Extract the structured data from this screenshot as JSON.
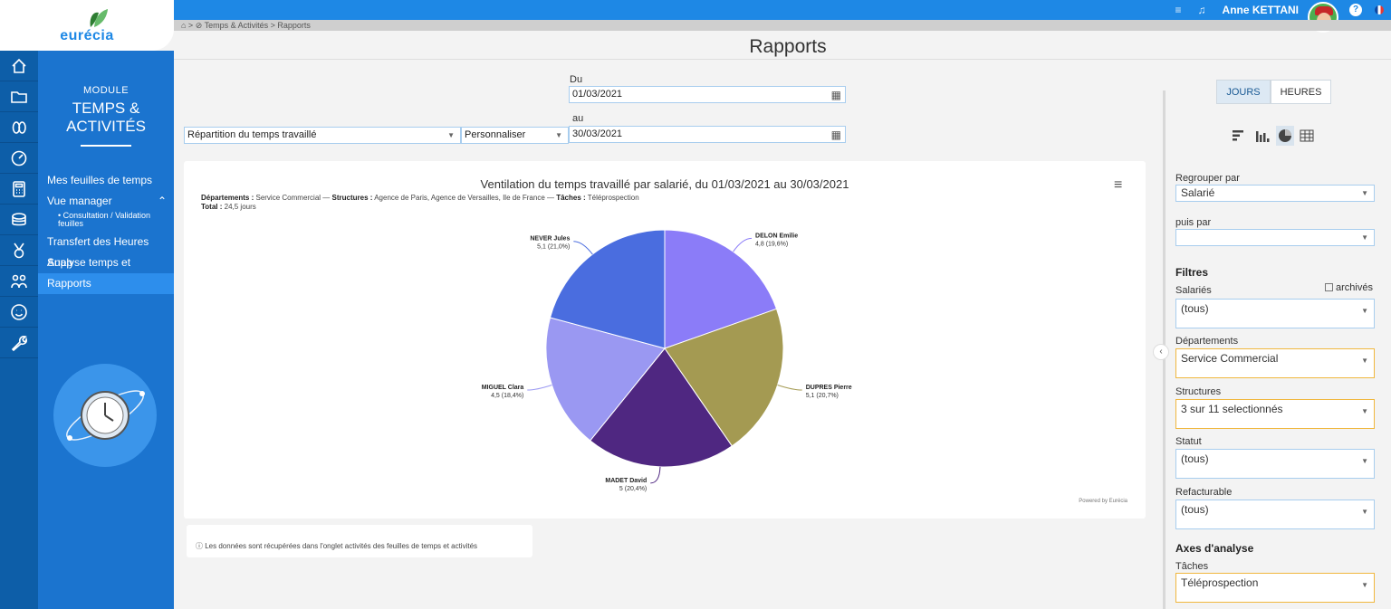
{
  "app": {
    "brand": "eurécia"
  },
  "topbar": {
    "user_name": "Anne KETTANI",
    "help": "?"
  },
  "breadcrumb": "⌂ > ⊘ Temps & Activités > Rapports",
  "module": {
    "kicker": "MODULE",
    "title_line1": "TEMPS &",
    "title_line2": "ACTIVITÉS",
    "menu": {
      "item1": "Mes feuilles de temps",
      "item2": "Vue manager",
      "sub": "• Consultation / Validation feuilles",
      "item3": "Transfert des Heures Supp",
      "item4": "Analyse temps et activités",
      "item5": "Rapports"
    },
    "rail_icons": [
      "home-icon",
      "folder-icon",
      "flip-flops-icon",
      "stopwatch-icon",
      "calculator-icon",
      "coins-icon",
      "medal-icon",
      "people-icon",
      "smiley-icon",
      "wrench-icon"
    ]
  },
  "page": {
    "title": "Rapports"
  },
  "filters": {
    "du_label": "Du",
    "du_value": "01/03/2021",
    "au_label": "au",
    "au_value": "30/03/2021",
    "report_type": "Répartition du temps travaillé",
    "period_mode": "Personnaliser"
  },
  "chart_card": {
    "title": "Ventilation du temps travaillé par salarié, du 01/03/2021 au 30/03/2021",
    "sub_dept_label": "Départements :",
    "sub_dept_value": "Service Commercial",
    "sub_struct_label": "Structures :",
    "sub_struct_value": "Agence de Paris, Agence de Versailles, Ile de France",
    "sub_task_label": "Tâches :",
    "sub_task_value": "Téléprospection",
    "sub_total_label": "Total :",
    "sub_total_value": "24,5 jours",
    "powered": "Powered by Eurécia",
    "menu_icon": "≡"
  },
  "chart_data": {
    "type": "pie",
    "categories": [
      "DELON Emilie",
      "DUPRES Pierre",
      "MADET David",
      "MIGUEL Clara",
      "NEVER Jules"
    ],
    "values": [
      4.8,
      5.1,
      5,
      4.5,
      5.1
    ],
    "labels": [
      "4,8 (19,6%)",
      "5,1 (20,7%)",
      "5 (20,4%)",
      "4,5 (18,4%)",
      "5,1 (21,0%)"
    ],
    "colors": [
      "#8b7cf8",
      "#a49a52",
      "#4f2781",
      "#9a98f2",
      "#4a6ddf"
    ]
  },
  "info": "ⓘ Les données sont récupérées dans l'onglet activités des feuilles de temps et activités",
  "right": {
    "seg_days": "JOURS",
    "seg_hours": "HEURES",
    "group_by_label": "Regrouper par",
    "group_by_value": "Salarié",
    "then_by_label": "puis par",
    "then_by_value": "",
    "filters_heading": "Filtres",
    "employees_label": "Salariés",
    "archived_label": "archivés",
    "employees_value": "(tous)",
    "depts_label": "Départements",
    "depts_value": "Service Commercial",
    "structs_label": "Structures",
    "structs_value": "3 sur 11 selectionnés",
    "status_label": "Statut",
    "status_value": "(tous)",
    "billable_label": "Refacturable",
    "billable_value": "(tous)",
    "axes_heading": "Axes d'analyse",
    "tasks_label": "Tâches",
    "tasks_value": "Téléprospection"
  }
}
